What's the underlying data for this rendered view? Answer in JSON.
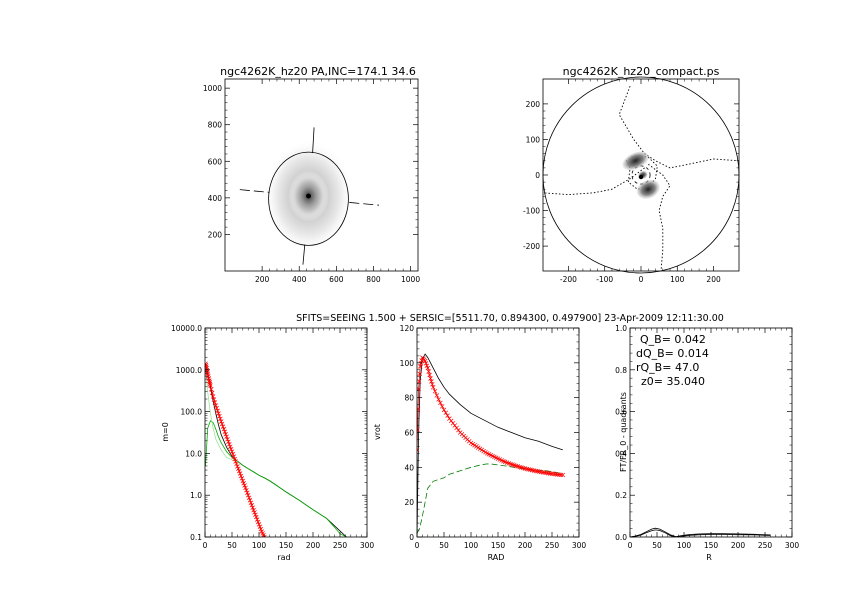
{
  "chart_data": [
    {
      "id": "p1",
      "type": "image",
      "title": "ngc4262K_hz20 PA,INC=174.1 34.6",
      "xlim": [
        0,
        1040
      ],
      "ylim": [
        0,
        1050
      ],
      "xticks": [
        200,
        400,
        600,
        800,
        1000
      ],
      "yticks": [
        200,
        400,
        600,
        800,
        1000
      ],
      "galaxy_center": [
        450,
        410
      ],
      "ellipse": {
        "center": [
          450,
          395
        ],
        "rx": 215,
        "ry": 255
      },
      "major_axis": [
        [
          420,
          35
        ],
        [
          480,
          785
        ]
      ],
      "minor_axis": [
        [
          80,
          445
        ],
        [
          830,
          360
        ]
      ]
    },
    {
      "id": "p2",
      "type": "contour",
      "title": "ngc4262K_hz20_compact.ps",
      "xlim": [
        -270,
        270
      ],
      "ylim": [
        -270,
        270
      ],
      "xticks": [
        -200,
        -100,
        0,
        100,
        200
      ],
      "yticks": [
        -200,
        -100,
        0,
        100,
        200
      ],
      "circle_radius": 270
    },
    {
      "id": "p3",
      "type": "line",
      "subtitle": "SFITS=SEEING 1.500 + SERSIC=[5511.70, 0.894300, 0.497900]  23-Apr-2009 12:11:30.00",
      "xlabel": "rad",
      "ylabel": "m=0",
      "log_y": true,
      "xlim": [
        0,
        300
      ],
      "ylim": [
        0.1,
        10000
      ],
      "xticks": [
        0,
        50,
        100,
        150,
        200,
        250,
        300
      ],
      "yticks": [
        0.1,
        1,
        10,
        100,
        1000,
        10000
      ],
      "ytick_labels": [
        "0.1",
        "1.0",
        "10.0",
        "100.0",
        "1000.0",
        "10000.0"
      ],
      "series": [
        {
          "color": "#000000",
          "style": "solid",
          "x": [
            1,
            5,
            10,
            15,
            20,
            25,
            30,
            40,
            50,
            60,
            70,
            80,
            90,
            100,
            110,
            120,
            130,
            150,
            175,
            200,
            225,
            250,
            262
          ],
          "y": [
            1400,
            800,
            380,
            180,
            90,
            48,
            28,
            14,
            8.5,
            6.5,
            5.2,
            4.3,
            3.6,
            3.0,
            2.6,
            2.2,
            1.8,
            1.2,
            0.75,
            0.45,
            0.28,
            0.14,
            0.1
          ]
        },
        {
          "color": "#00b000",
          "style": "solid",
          "x": [
            1,
            5,
            10,
            15,
            20,
            25,
            30,
            40,
            50,
            60,
            70,
            80,
            90,
            100,
            110,
            120,
            130,
            150,
            175,
            200,
            225,
            240,
            250,
            262
          ],
          "y": [
            5,
            40,
            60,
            55,
            38,
            25,
            18,
            11,
            8,
            6.5,
            5.2,
            4.3,
            3.6,
            3.0,
            2.6,
            2.2,
            1.8,
            1.2,
            0.75,
            0.45,
            0.28,
            0.17,
            0.12,
            0.1
          ]
        },
        {
          "color": "#a0e0a0",
          "style": "solid",
          "x": [
            1,
            5,
            10,
            15,
            20,
            30,
            40,
            50,
            60
          ],
          "y": [
            1200,
            300,
            90,
            40,
            22,
            12,
            8,
            7,
            6.5
          ]
        },
        {
          "color": "#ff0000",
          "style": "markers",
          "x": [
            1,
            3,
            5,
            8,
            10,
            15,
            20,
            25,
            30,
            35,
            40,
            45,
            50,
            55,
            60,
            65,
            70,
            75,
            80,
            85,
            90,
            95,
            100,
            105,
            110
          ],
          "y": [
            1400,
            1100,
            800,
            550,
            420,
            230,
            140,
            90,
            58,
            38,
            25,
            16.5,
            11,
            7.3,
            4.9,
            3.3,
            2.2,
            1.5,
            1.0,
            0.66,
            0.44,
            0.3,
            0.2,
            0.135,
            0.1
          ]
        }
      ]
    },
    {
      "id": "p4",
      "type": "line",
      "xlabel": "RAD",
      "ylabel": "vrot",
      "xlim": [
        0,
        300
      ],
      "ylim": [
        0,
        120
      ],
      "xticks": [
        0,
        50,
        100,
        150,
        200,
        250,
        300
      ],
      "yticks": [
        0,
        20,
        40,
        60,
        80,
        100,
        120
      ],
      "series": [
        {
          "color": "#000000",
          "style": "solid",
          "x": [
            0,
            3,
            6,
            10,
            15,
            20,
            30,
            40,
            50,
            60,
            80,
            100,
            125,
            150,
            175,
            200,
            225,
            250,
            270
          ],
          "y": [
            0,
            60,
            90,
            102,
            105,
            103,
            97,
            91,
            86,
            82,
            76,
            71,
            67,
            63,
            60,
            57,
            55,
            52,
            50
          ]
        },
        {
          "color": "#008000",
          "style": "dashed",
          "x": [
            0,
            5,
            10,
            15,
            20,
            30,
            40,
            50,
            60,
            80,
            100,
            120,
            130,
            140,
            160,
            180,
            200,
            220,
            240,
            260,
            270
          ],
          "y": [
            2,
            5,
            12,
            20,
            28,
            32,
            33,
            34,
            36,
            38,
            40,
            41.5,
            42,
            41.8,
            41,
            40,
            39,
            38.5,
            38,
            37,
            36
          ]
        },
        {
          "color": "#ff0000",
          "style": "markers",
          "x": [
            0,
            3,
            6,
            10,
            15,
            20,
            25,
            30,
            40,
            50,
            60,
            70,
            80,
            90,
            100,
            110,
            120,
            130,
            140,
            150,
            160,
            170,
            180,
            190,
            200,
            210,
            220,
            230,
            240,
            250,
            260,
            270
          ],
          "y": [
            50,
            85,
            98,
            103,
            101,
            97,
            91,
            86,
            79,
            73,
            68,
            64,
            60,
            57,
            54,
            52,
            50,
            48,
            46.5,
            45,
            43.5,
            42.3,
            41.2,
            40.2,
            39.3,
            38.6,
            37.9,
            37.3,
            36.8,
            36.3,
            35.9,
            35.6
          ]
        }
      ]
    },
    {
      "id": "p5",
      "type": "line",
      "xlabel": "R",
      "ylabel": "FT/FR_0 - quadrants",
      "xlim": [
        0,
        300
      ],
      "ylim": [
        0,
        1.0
      ],
      "xticks": [
        0,
        50,
        100,
        150,
        200,
        250,
        300
      ],
      "yticks": [
        0,
        0.2,
        0.4,
        0.6,
        0.8,
        1.0
      ],
      "ytick_labels": [
        "0.0",
        "0.2",
        "0.4",
        "0.6",
        "0.8",
        "1.0"
      ],
      "annotations": [
        "Q_B=  0.042",
        "dQ_B=  0.014",
        "rQ_B=   47.0",
        "z0= 35.040"
      ],
      "series": [
        {
          "color": "#000000",
          "style": "solid",
          "x": [
            0,
            10,
            20,
            30,
            40,
            47,
            55,
            65,
            75,
            85,
            95,
            110,
            130,
            150,
            170,
            200,
            230,
            260
          ],
          "y": [
            0,
            0.005,
            0.012,
            0.025,
            0.038,
            0.042,
            0.038,
            0.025,
            0.01,
            0.002,
            0.006,
            0.012,
            0.015,
            0.016,
            0.016,
            0.015,
            0.013,
            0.01
          ]
        },
        {
          "color": "#000000",
          "style": "solid",
          "x": [
            0,
            10,
            20,
            30,
            40,
            47,
            55,
            65,
            75,
            85,
            95,
            110,
            130,
            150,
            170,
            200,
            230,
            260
          ],
          "y": [
            0,
            0.003,
            0.009,
            0.02,
            0.03,
            0.034,
            0.031,
            0.02,
            0.006,
            0.0,
            0.003,
            0.008,
            0.011,
            0.012,
            0.012,
            0.011,
            0.01,
            0.007
          ]
        }
      ]
    }
  ]
}
